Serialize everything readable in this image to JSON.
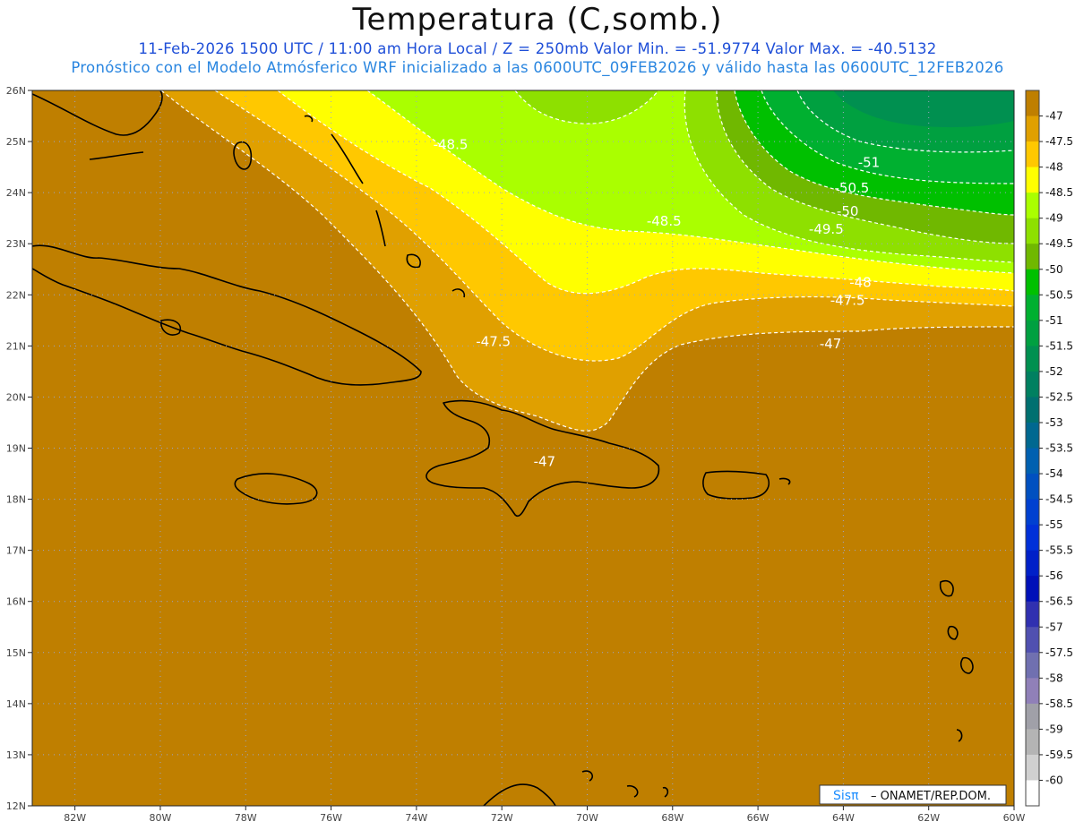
{
  "header": {
    "title": "Temperatura (C,somb.)",
    "line1": "11-Feb-2026  1500 UTC / 11:00 am Hora Local / Z = 250mb  Valor Min. = -51.9774  Valor Max. = -40.5132",
    "line2": "Pronóstico con el Modelo Atmósferico WRF inicializado a las 0600UTC_09FEB2026 y válido hasta las  0600UTC_12FEB2026"
  },
  "map": {
    "variable": "Temperatura",
    "level_mb": 250,
    "value_min": -51.9774,
    "value_max": -40.5132,
    "lat_range": [
      12,
      26
    ],
    "lon_range": [
      -83,
      -60
    ],
    "lat_labels": [
      "26N",
      "25N",
      "24N",
      "23N",
      "22N",
      "21N",
      "20N",
      "19N",
      "18N",
      "17N",
      "16N",
      "15N",
      "14N",
      "13N",
      "12N"
    ],
    "lon_labels": [
      "82W",
      "80W",
      "78W",
      "76W",
      "74W",
      "72W",
      "70W",
      "68W",
      "66W",
      "64W",
      "62W",
      "60W"
    ],
    "grid": "dotted"
  },
  "contour_labels": [
    {
      "text": "-48.5",
      "lon": -73.2,
      "lat": 24.85
    },
    {
      "text": "-48.5",
      "lon": -68.2,
      "lat": 23.35
    },
    {
      "text": "-51",
      "lon": -63.4,
      "lat": 24.5
    },
    {
      "text": "-50.5",
      "lon": -63.8,
      "lat": 24.0
    },
    {
      "text": "-50",
      "lon": -63.9,
      "lat": 23.55
    },
    {
      "text": "-49.5",
      "lon": -64.4,
      "lat": 23.2
    },
    {
      "text": "-48",
      "lon": -63.6,
      "lat": 22.15
    },
    {
      "text": "-47.5",
      "lon": -63.9,
      "lat": 21.8
    },
    {
      "text": "-47.5",
      "lon": -72.2,
      "lat": 21.0
    },
    {
      "text": "-47",
      "lon": -64.3,
      "lat": 20.95
    },
    {
      "text": "-47",
      "lon": -71.0,
      "lat": 18.65
    }
  ],
  "colorbar": {
    "labels": [
      "-47",
      "-47.5",
      "-48",
      "-48.5",
      "-49",
      "-49.5",
      "-50",
      "-50.5",
      "-51",
      "-51.5",
      "-52",
      "-52.5",
      "-53",
      "-53.5",
      "-54",
      "-54.5",
      "-55",
      "-55.5",
      "-56",
      "-56.5",
      "-57",
      "-57.5",
      "-58",
      "-58.5",
      "-59",
      "-59.5",
      "-60"
    ],
    "colors": [
      "#bf7f00",
      "#e0a000",
      "#ffc800",
      "#ffff00",
      "#aaff00",
      "#8ee000",
      "#70b800",
      "#00c000",
      "#00b030",
      "#00a040",
      "#009050",
      "#008060",
      "#007070",
      "#006890",
      "#0060b0",
      "#0050c0",
      "#0040d0",
      "#0030d8",
      "#0020c8",
      "#0010b8",
      "#3030b0",
      "#5050b0",
      "#7070b0",
      "#9080b8",
      "#a0a0a8",
      "#b4b4b4",
      "#d0d0d0",
      "#ffffff"
    ]
  },
  "credit": {
    "brand": "Sisπ",
    "text": "– ONAMET/REP.DOM."
  }
}
